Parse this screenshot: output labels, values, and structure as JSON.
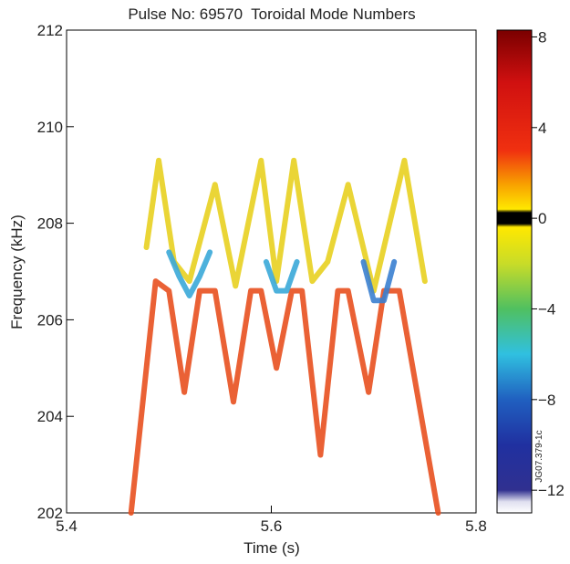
{
  "chart_data": {
    "type": "spectrogram",
    "title": "Pulse No: 69570  Toroidal Mode Numbers",
    "xlabel": "Time (s)",
    "ylabel": "Frequency (kHz)",
    "xlim": [
      5.4,
      5.8
    ],
    "xticks": [
      5.4,
      5.6,
      5.8
    ],
    "ylim": [
      202,
      212
    ],
    "yticks": [
      202,
      204,
      206,
      208,
      210,
      212
    ],
    "series": [
      {
        "color": "#e8501f",
        "x": [
          5.463,
          5.487,
          5.5,
          5.515,
          5.53,
          5.545,
          5.563,
          5.58,
          5.59,
          5.605,
          5.62,
          5.63,
          5.648,
          5.665,
          5.675,
          5.695,
          5.71,
          5.725,
          5.763
        ],
        "values": [
          202,
          206.8,
          206.6,
          204.5,
          206.6,
          206.6,
          204.3,
          206.6,
          206.6,
          205,
          206.6,
          206.6,
          203.2,
          206.6,
          206.6,
          204.5,
          206.6,
          206.6,
          202
        ]
      },
      {
        "color": "#e8d020",
        "x": [
          5.478,
          5.49,
          5.505,
          5.52,
          5.545,
          5.565,
          5.59,
          5.605,
          5.622,
          5.64,
          5.655,
          5.675,
          5.7,
          5.73,
          5.75
        ],
        "values": [
          207.5,
          209.3,
          207.2,
          206.8,
          208.8,
          206.7,
          209.3,
          206.8,
          209.3,
          206.8,
          207.2,
          208.8,
          206.6,
          209.3,
          206.8
        ]
      },
      {
        "color": "#3aa8d8",
        "x": [
          5.5,
          5.51,
          5.52,
          5.53,
          5.54
        ],
        "values": [
          207.4,
          206.9,
          206.5,
          206.9,
          207.4
        ]
      },
      {
        "color": "#3aa8d8",
        "x": [
          5.595,
          5.605,
          5.615,
          5.625
        ],
        "values": [
          207.2,
          206.6,
          206.6,
          207.2
        ]
      },
      {
        "color": "#3a80d0",
        "x": [
          5.69,
          5.7,
          5.71,
          5.72
        ],
        "values": [
          207.2,
          206.4,
          206.4,
          207.2
        ]
      }
    ],
    "colorbar": {
      "lim": [
        -13,
        8.3
      ],
      "ticks": [
        8,
        4,
        0,
        {
          "value": -4,
          "label": "−4"
        },
        {
          "value": -8,
          "label": "−8"
        },
        {
          "value": -12,
          "label": "−12"
        }
      ]
    },
    "watermark": "JG07.379-1c"
  }
}
